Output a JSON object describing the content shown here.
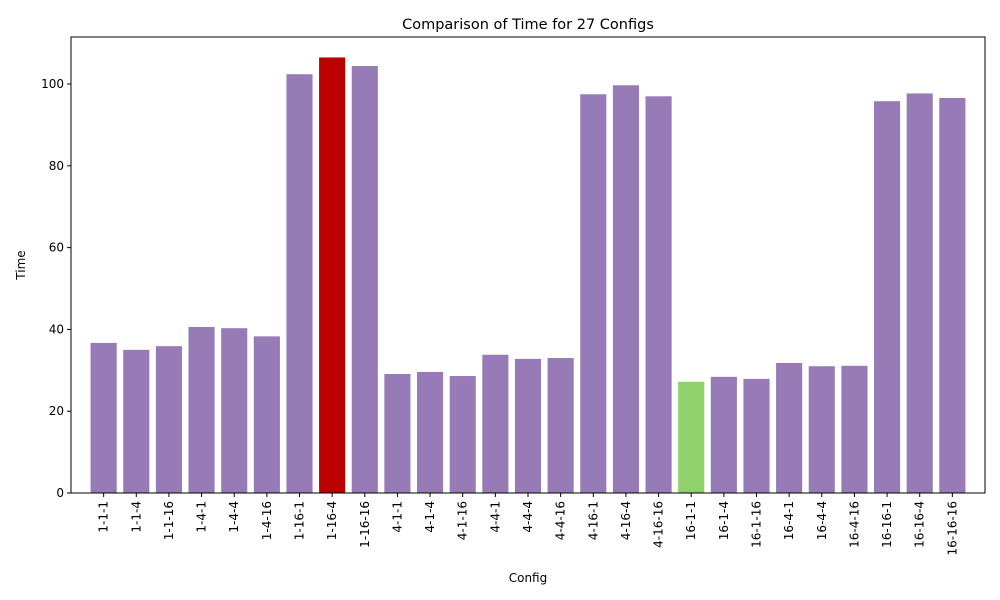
{
  "chart_data": {
    "type": "bar",
    "title": "Comparison of Time for 27 Configs",
    "xlabel": "Config",
    "ylabel": "Time",
    "ylim": [
      0,
      111.5
    ],
    "yticks": [
      0,
      20,
      40,
      60,
      80,
      100
    ],
    "grid": false,
    "categories": [
      "1-1-1",
      "1-1-4",
      "1-1-16",
      "1-4-1",
      "1-4-4",
      "1-4-16",
      "1-16-1",
      "1-16-4",
      "1-16-16",
      "4-1-1",
      "4-1-4",
      "4-1-16",
      "4-4-1",
      "4-4-4",
      "4-4-16",
      "4-16-1",
      "4-16-4",
      "4-16-16",
      "16-1-1",
      "16-1-4",
      "16-1-16",
      "16-4-1",
      "16-4-4",
      "16-4-16",
      "16-16-1",
      "16-16-4",
      "16-16-16"
    ],
    "values": [
      36.7,
      35.0,
      35.9,
      40.6,
      40.3,
      38.3,
      102.4,
      106.5,
      104.4,
      29.1,
      29.6,
      28.6,
      33.8,
      32.8,
      33.0,
      97.5,
      99.7,
      97.0,
      27.2,
      28.4,
      27.9,
      31.8,
      31.0,
      31.1,
      95.8,
      97.7,
      96.6
    ],
    "colors": {
      "default": "#967bb6",
      "max": "#bb0000",
      "min": "#8fd16a"
    },
    "highlight": {
      "max_index": 7,
      "min_index": 18
    }
  }
}
